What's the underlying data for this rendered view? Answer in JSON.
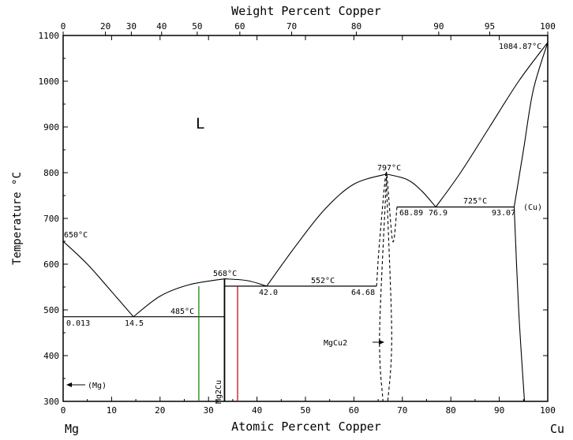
{
  "chart_data": {
    "type": "phase-diagram",
    "title": "",
    "top_axis_label": "Weight Percent Copper",
    "bottom_axis_label": "Atomic Percent Copper",
    "ylabel": "Temperature °C",
    "left_component": "Mg",
    "right_component": "Cu",
    "xlim": [
      0,
      100
    ],
    "ylim": [
      300,
      1100
    ],
    "x_ticks": [
      "0",
      "10",
      "20",
      "30",
      "40",
      "50",
      "60",
      "70",
      "80",
      "90",
      "100"
    ],
    "y_ticks": [
      "300",
      "400",
      "500",
      "600",
      "700",
      "800",
      "900",
      "1000",
      "1100"
    ],
    "top_ticks": [
      {
        "wt": 0,
        "at": 0
      },
      {
        "wt": 20,
        "at": 8.73
      },
      {
        "wt": 30,
        "at": 14.07
      },
      {
        "wt": 40,
        "at": 20.32
      },
      {
        "wt": 50,
        "at": 27.67
      },
      {
        "wt": 60,
        "at": 36.46
      },
      {
        "wt": 70,
        "at": 47.16
      },
      {
        "wt": 80,
        "at": 60.5
      },
      {
        "wt": 90,
        "at": 77.5
      },
      {
        "wt": 95,
        "at": 88.03
      },
      {
        "wt": 100,
        "at": 100
      }
    ],
    "phase_labels": {
      "liquid": "L",
      "mg_solid": "(Mg)",
      "cu_solid": "(Cu)",
      "mg2cu": "Mg2Cu",
      "mgcu2": "MgCu2"
    },
    "points": {
      "mg_melt": {
        "x": 0,
        "y": 650,
        "label": "650°C"
      },
      "eutectic1": {
        "x": 14.5,
        "y": 485,
        "label": "485°C",
        "comp": "14.5",
        "mg_solubility": "0.013"
      },
      "mg2cu_melt": {
        "x": 33.3,
        "y": 568,
        "label": "568°C"
      },
      "eutectic2": {
        "x": 42.0,
        "y": 552,
        "label": "552°C",
        "left": "42.0",
        "right": "64.68"
      },
      "mgcu2_melt": {
        "x": 66.7,
        "y": 797,
        "label": "797°C"
      },
      "eutectic3": {
        "x": 76.9,
        "y": 725,
        "label": "725°C",
        "left": "68.89",
        "mid": "76.9",
        "right": "93.07"
      },
      "cu_melt": {
        "x": 100,
        "y": 1084.87,
        "label": "1084.87°C"
      }
    },
    "lines": {
      "mg_liquidus": [
        [
          0,
          650
        ],
        [
          5,
          600
        ],
        [
          10,
          540
        ],
        [
          14.5,
          485
        ]
      ],
      "mg2cu_left_liquidus": [
        [
          14.5,
          485
        ],
        [
          20,
          530
        ],
        [
          26,
          555
        ],
        [
          33.3,
          568
        ]
      ],
      "mg2cu_right_liquidus": [
        [
          33.3,
          568
        ],
        [
          38,
          564
        ],
        [
          42,
          552
        ]
      ],
      "mgcu2_left_liquidus": [
        [
          42,
          552
        ],
        [
          48,
          640
        ],
        [
          54,
          720
        ],
        [
          60,
          775
        ],
        [
          66.7,
          797
        ]
      ],
      "mgcu2_right_liquidus": [
        [
          66.7,
          797
        ],
        [
          71,
          785
        ],
        [
          74,
          760
        ],
        [
          76.9,
          725
        ]
      ],
      "cu_liquidus": [
        [
          76.9,
          725
        ],
        [
          82,
          800
        ],
        [
          88,
          900
        ],
        [
          94,
          1000
        ],
        [
          100,
          1084.87
        ]
      ],
      "cu_solidus": [
        [
          93.07,
          725
        ],
        [
          95,
          850
        ],
        [
          97,
          980
        ],
        [
          100,
          1084.87
        ]
      ],
      "cu_solvus": [
        [
          93.07,
          725
        ],
        [
          94,
          500
        ],
        [
          95.2,
          300
        ]
      ],
      "mgcu2_left_boundary": [
        [
          64.68,
          552
        ],
        [
          65.3,
          650
        ],
        [
          66.7,
          797
        ],
        [
          65.3,
          450
        ],
        [
          66,
          300
        ]
      ],
      "mgcu2_right_boundary": [
        [
          68.89,
          725
        ],
        [
          68,
          650
        ],
        [
          66.7,
          797
        ],
        [
          67.8,
          450
        ],
        [
          67,
          300
        ]
      ]
    },
    "isotherms": [
      {
        "x1": 0,
        "x2": 33.3,
        "y": 485
      },
      {
        "x1": 33.3,
        "x2": 64.68,
        "y": 552
      },
      {
        "x1": 68.89,
        "x2": 93.07,
        "y": 725
      }
    ],
    "markers": [
      {
        "x": 28,
        "color": "#008000"
      },
      {
        "x": 36,
        "color": "#c00000"
      }
    ]
  }
}
